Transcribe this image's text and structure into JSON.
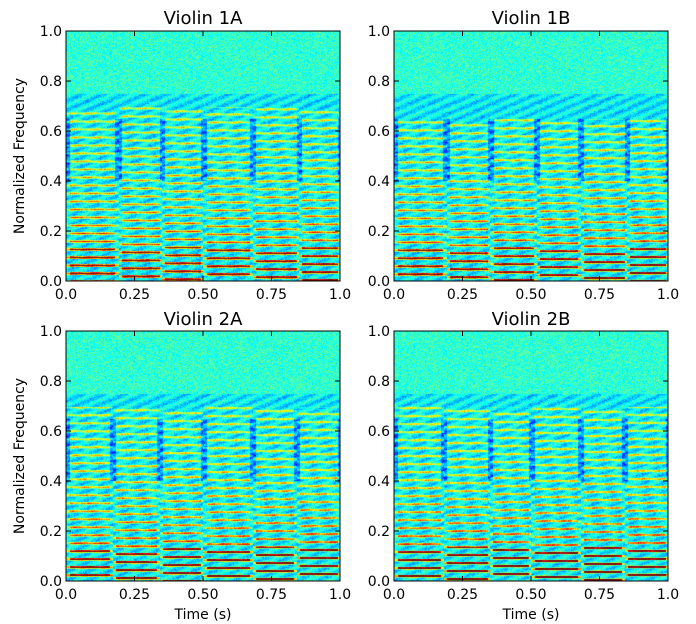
{
  "chart_data": [
    {
      "type": "heatmap",
      "title": "Violin 1A",
      "xlabel": "",
      "ylabel": "Normalized Frequency",
      "xlim": [
        0.0,
        1.0
      ],
      "ylim": [
        0.0,
        1.0
      ],
      "x_ticks": [
        "0.0",
        "0.25",
        "0.50",
        "0.75",
        "1.0"
      ],
      "y_ticks": [
        "0.0",
        "0.2",
        "0.4",
        "0.6",
        "0.8",
        "1.0"
      ],
      "colormap": "jet",
      "note_onsets": [
        0.0,
        0.19,
        0.35,
        0.5,
        0.68,
        0.85
      ],
      "harmonic_spacing": 0.032,
      "bright_harmonics_up_to": 0.7,
      "grid": false
    },
    {
      "type": "heatmap",
      "title": "Violin 1B",
      "xlabel": "",
      "ylabel": "",
      "xlim": [
        0.0,
        1.0
      ],
      "ylim": [
        0.0,
        1.0
      ],
      "x_ticks": [
        "0.0",
        "0.25",
        "0.50",
        "0.75",
        "1.0"
      ],
      "y_ticks": [
        "0.0",
        "0.2",
        "0.4",
        "0.6",
        "0.8",
        "1.0"
      ],
      "colormap": "jet",
      "note_onsets": [
        0.0,
        0.19,
        0.35,
        0.52,
        0.68,
        0.85
      ],
      "harmonic_spacing": 0.032,
      "bright_harmonics_up_to": 0.65,
      "grid": false
    },
    {
      "type": "heatmap",
      "title": "Violin 2A",
      "xlabel": "Time (s)",
      "ylabel": "Normalized Frequency",
      "xlim": [
        0.0,
        1.0
      ],
      "ylim": [
        0.0,
        1.0
      ],
      "x_ticks": [
        "0.0",
        "0.25",
        "0.50",
        "0.75",
        "1.0"
      ],
      "y_ticks": [
        "0.0",
        "0.2",
        "0.4",
        "0.6",
        "0.8",
        "1.0"
      ],
      "colormap": "jet",
      "note_onsets": [
        0.0,
        0.17,
        0.34,
        0.5,
        0.68,
        0.84
      ],
      "harmonic_spacing": 0.032,
      "bright_harmonics_up_to": 0.7,
      "grid": false
    },
    {
      "type": "heatmap",
      "title": "Violin 2B",
      "xlabel": "Time (s)",
      "ylabel": "",
      "xlim": [
        0.0,
        1.0
      ],
      "ylim": [
        0.0,
        1.0
      ],
      "x_ticks": [
        "0.0",
        "0.25",
        "0.50",
        "0.75",
        "1.0"
      ],
      "y_ticks": [
        "0.0",
        "0.2",
        "0.4",
        "0.6",
        "0.8",
        "1.0"
      ],
      "colormap": "jet",
      "note_onsets": [
        0.0,
        0.18,
        0.35,
        0.5,
        0.68,
        0.84
      ],
      "harmonic_spacing": 0.032,
      "bright_harmonics_up_to": 0.7,
      "grid": false
    }
  ]
}
